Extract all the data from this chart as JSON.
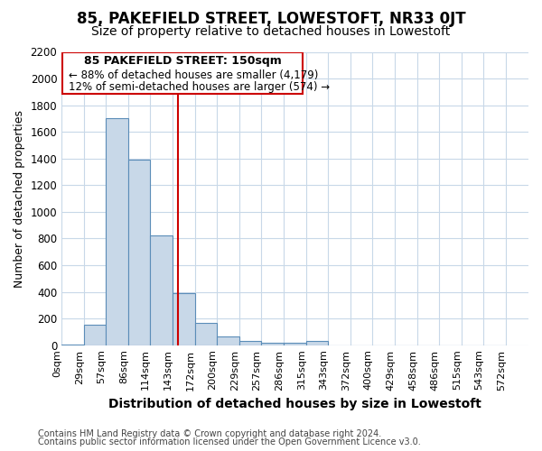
{
  "title": "85, PAKEFIELD STREET, LOWESTOFT, NR33 0JT",
  "subtitle": "Size of property relative to detached houses in Lowestoft",
  "xlabel": "Distribution of detached houses by size in Lowestoft",
  "ylabel": "Number of detached properties",
  "footnote1": "Contains HM Land Registry data © Crown copyright and database right 2024.",
  "footnote2": "Contains public sector information licensed under the Open Government Licence v3.0.",
  "bins": [
    0,
    29,
    57,
    86,
    114,
    143,
    172,
    200,
    229,
    257,
    286,
    315,
    343,
    372,
    400,
    429,
    458,
    486,
    515,
    543,
    572
  ],
  "counts": [
    5,
    155,
    1700,
    1390,
    820,
    390,
    165,
    65,
    30,
    20,
    15,
    30,
    0,
    0,
    0,
    0,
    0,
    0,
    0,
    0
  ],
  "bar_color": "#c8d8e8",
  "bar_edge_color": "#5b8db8",
  "property_size": 150,
  "red_line_color": "#cc0000",
  "annotation_text1": "85 PAKEFIELD STREET: 150sqm",
  "annotation_text2": "← 88% of detached houses are smaller (4,179)",
  "annotation_text3": "12% of semi-detached houses are larger (574) →",
  "annotation_box_color": "#ffffff",
  "annotation_box_edge": "#cc0000",
  "ylim": [
    0,
    2200
  ],
  "xlim_min": 0,
  "xlim_max": 601,
  "background_color": "#ffffff",
  "grid_color": "#c8d8e8",
  "title_fontsize": 12,
  "subtitle_fontsize": 10,
  "tick_label_fontsize": 8,
  "ylabel_fontsize": 9,
  "xlabel_fontsize": 10,
  "footnote_fontsize": 7
}
